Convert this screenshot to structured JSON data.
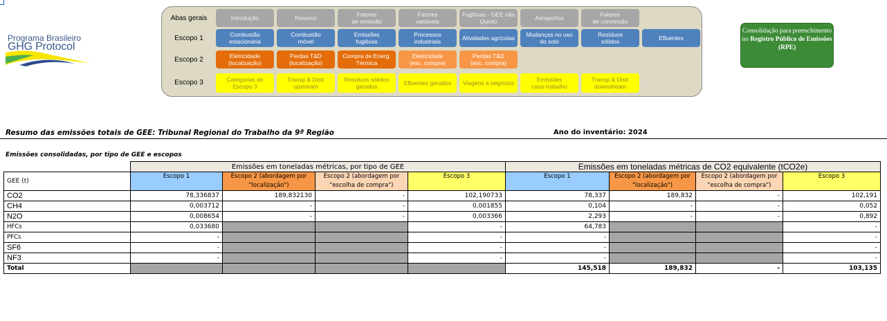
{
  "logo": {
    "line1": "Programa Brasileiro",
    "line2": "GHG Protocol"
  },
  "nav": {
    "rows": [
      {
        "label": "Abas gerais",
        "color": "g",
        "buttons": [
          "Introdução",
          "Resumo",
          "Fatores\nde emissão",
          "Fatores\nvariáveis",
          "Fugitivas - GEE não\nQuioto",
          "Aeroportos",
          "Fatores\nde conversão"
        ]
      },
      {
        "label": "Escopo 1",
        "color": "b",
        "buttons": [
          "Combustão\nestacionária",
          "Combustão\nmóvel",
          "Emissões\nfugitivas",
          "Processos\nindustriais",
          "Atividades agrícolas",
          "Mudanças no uso\ndo solo",
          "Resíduos\nsólidos",
          "Efluentes"
        ]
      },
      {
        "label": "Escopo 2",
        "color": "o",
        "buttons": [
          "Eletricidade\n(localização)",
          "Perdas T&D\n(localização)",
          "Compra de Energ.\nTérmica",
          "Eletricidade\n(esc. compra)",
          "Perdas T&D\n(esc. compra)"
        ]
      },
      {
        "label": "Escopo 3",
        "color": "y",
        "buttons": [
          "Categorias de\nEscopo 3",
          "Transp & Distr\nupstream",
          "Resíduos sólidos\ngerados",
          "Efluentes gerados",
          "Viagens a negócios",
          "Emissões\ncasa-trabalho",
          "Transp & Distr\ndownstream"
        ]
      }
    ]
  },
  "rpe_button": {
    "text1": "Consolidação para preenchimento no ",
    "bold": "Registro Público de Emissões (RPE)"
  },
  "summary": {
    "title": "Resumo das emissões totais de GEE: Tribunal Regional do Trabalho da 9ª Região",
    "year": "Ano do inventário: 2024",
    "subtitle": "Emissões consolidadas, por tipo de GEE e escopos"
  },
  "table": {
    "group1": "Emissões em toneladas métricas, por tipo de GEE",
    "group2": "Emissões em toneladas métricas de CO2 equivalente (tCO2e)",
    "gas_header": "GEE (t)",
    "headers_t": [
      "Escopo 1",
      "Escopo 2 (abordagem por \"localização\")",
      "Escopo 2 (abordagem por \"escolha de compra\")",
      "Escopo 3"
    ],
    "headers_co2e": [
      "Escopo 1",
      "Escopo 2 (abordagem por \"localização\")",
      "Escopo 2 (abordagem por \"escolha de compra\")",
      "Escopo 3"
    ],
    "rows": [
      {
        "gas": "CO2",
        "t": [
          "78,336837",
          "189,832130",
          "-",
          "102,190733"
        ],
        "co2e": [
          "78,337",
          "189,832",
          "-",
          "102,191"
        ]
      },
      {
        "gas": "CH4",
        "t": [
          "0,003712",
          "-",
          "-",
          "0,001855"
        ],
        "co2e": [
          "0,104",
          "-",
          "-",
          "0,052"
        ]
      },
      {
        "gas": "N2O",
        "t": [
          "0,008654",
          "-",
          "-",
          "0,003366"
        ],
        "co2e": [
          "2,293",
          "-",
          "-",
          "0,892"
        ]
      },
      {
        "gas": "HFCs",
        "t": [
          "0,033680",
          null,
          null,
          "-"
        ],
        "co2e": [
          "64,783",
          null,
          null,
          "-"
        ]
      },
      {
        "gas": "PFCs",
        "t": [
          "-",
          null,
          null,
          "-"
        ],
        "co2e": [
          "-",
          null,
          null,
          "-"
        ]
      },
      {
        "gas": "SF6",
        "t": [
          "-",
          null,
          null,
          "-"
        ],
        "co2e": [
          "-",
          null,
          null,
          "-"
        ]
      },
      {
        "gas": "NF3",
        "t": [
          "-",
          null,
          null,
          "-"
        ],
        "co2e": [
          "-",
          null,
          null,
          "-"
        ]
      }
    ],
    "total": {
      "label": "Total",
      "co2e": [
        "145,518",
        "189,832",
        "-",
        "103,135"
      ]
    }
  }
}
